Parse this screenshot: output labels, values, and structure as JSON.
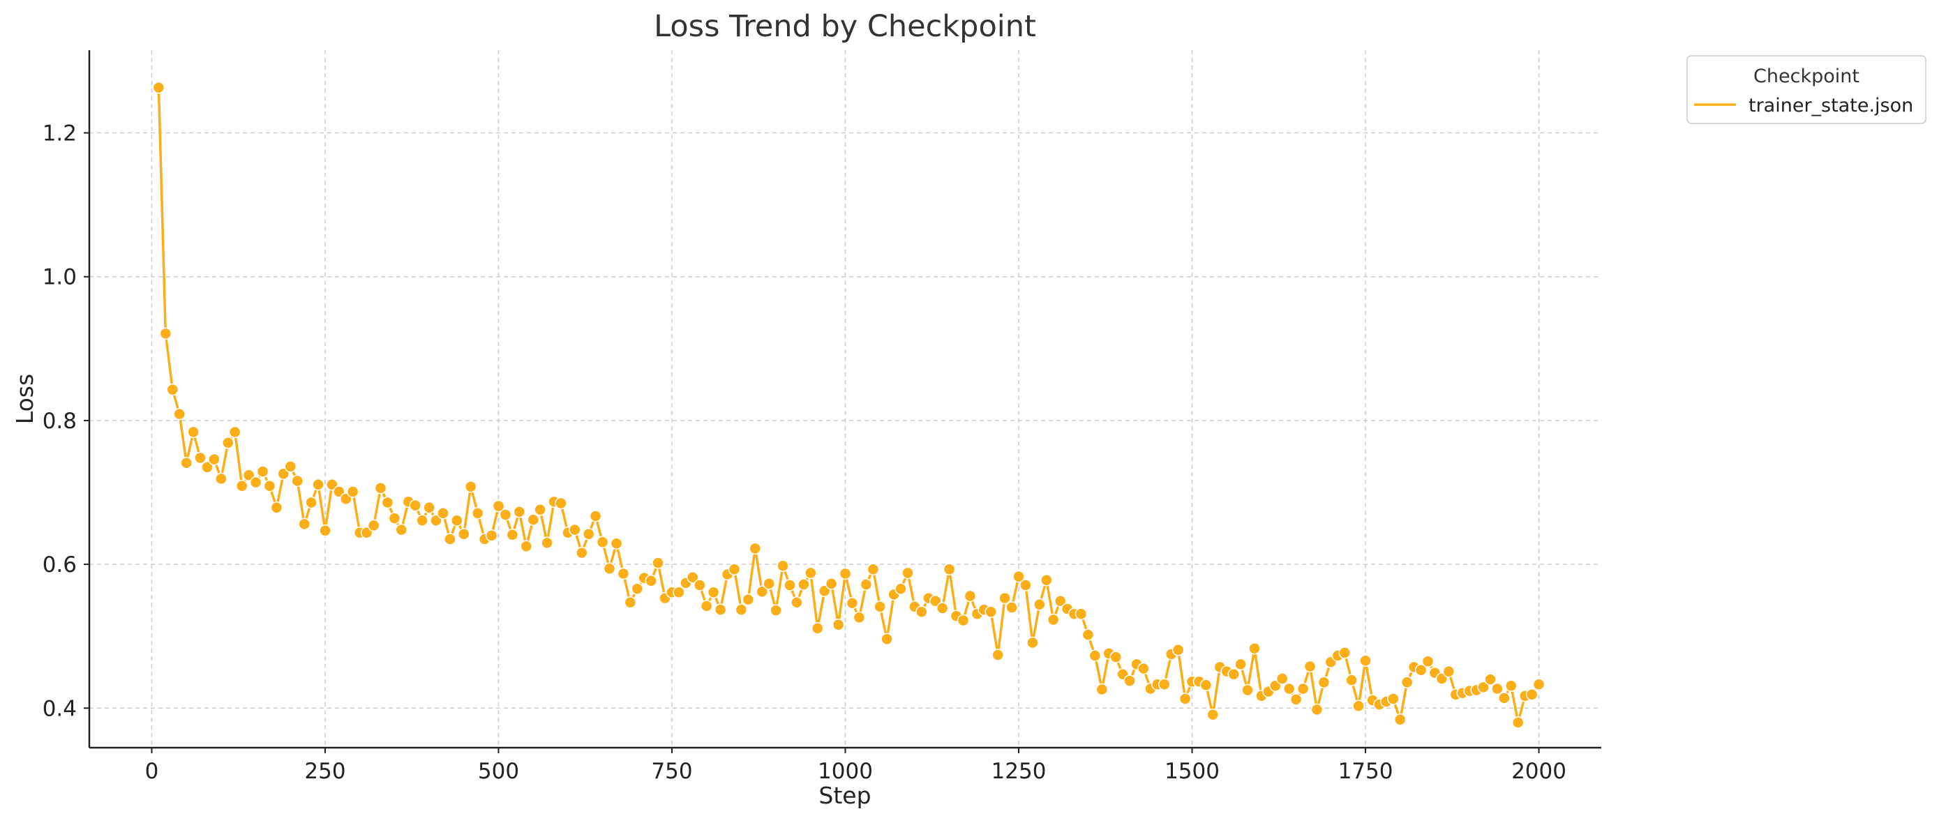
{
  "chart_data": {
    "type": "line",
    "title": "Loss Trend by Checkpoint",
    "xlabel": "Step",
    "ylabel": "Loss",
    "xlim": [
      -90,
      2090
    ],
    "ylim": [
      0.345,
      1.315
    ],
    "xticks": [
      0,
      250,
      500,
      750,
      1000,
      1250,
      1500,
      1750,
      2000
    ],
    "yticks": [
      0.4,
      0.6,
      0.8,
      1.0,
      1.2
    ],
    "xtick_labels": [
      "0",
      "250",
      "500",
      "750",
      "1000",
      "1250",
      "1500",
      "1750",
      "2000"
    ],
    "ytick_labels": [
      "0.4",
      "0.6",
      "0.8",
      "1.0",
      "1.2"
    ],
    "grid": true,
    "legend": {
      "title": "Checkpoint",
      "position": "outside-top-right"
    },
    "series": [
      {
        "name": "trainer_state.json",
        "color": "#FBAE17",
        "marker": "circle",
        "x": [
          10,
          20,
          30,
          40,
          50,
          60,
          70,
          80,
          90,
          100,
          110,
          120,
          130,
          140,
          150,
          160,
          170,
          180,
          190,
          200,
          210,
          220,
          230,
          240,
          250,
          260,
          270,
          280,
          290,
          300,
          310,
          320,
          330,
          340,
          350,
          360,
          370,
          380,
          390,
          400,
          410,
          420,
          430,
          440,
          450,
          460,
          470,
          480,
          490,
          500,
          510,
          520,
          530,
          540,
          550,
          560,
          570,
          580,
          590,
          600,
          610,
          620,
          630,
          640,
          650,
          660,
          670,
          680,
          690,
          700,
          710,
          720,
          730,
          740,
          750,
          760,
          770,
          780,
          790,
          800,
          810,
          820,
          830,
          840,
          850,
          860,
          870,
          880,
          890,
          900,
          910,
          920,
          930,
          940,
          950,
          960,
          970,
          980,
          990,
          1000,
          1010,
          1020,
          1030,
          1040,
          1050,
          1060,
          1070,
          1080,
          1090,
          1100,
          1110,
          1120,
          1130,
          1140,
          1150,
          1160,
          1170,
          1180,
          1190,
          1200,
          1210,
          1220,
          1230,
          1240,
          1250,
          1260,
          1270,
          1280,
          1290,
          1300,
          1310,
          1320,
          1330,
          1340,
          1350,
          1360,
          1370,
          1380,
          1390,
          1400,
          1410,
          1420,
          1430,
          1440,
          1450,
          1460,
          1470,
          1480,
          1490,
          1500,
          1510,
          1520,
          1530,
          1540,
          1550,
          1560,
          1570,
          1580,
          1590,
          1600,
          1610,
          1620,
          1630,
          1640,
          1650,
          1660,
          1670,
          1680,
          1690,
          1700,
          1710,
          1720,
          1730,
          1740,
          1750,
          1760,
          1770,
          1780,
          1790,
          1800,
          1810,
          1820,
          1830,
          1840,
          1850,
          1860,
          1870,
          1880,
          1890,
          1900,
          1910,
          1920,
          1930,
          1940,
          1950,
          1960,
          1970,
          1980,
          1990,
          2000
        ],
        "y": [
          1.263,
          0.921,
          0.843,
          0.809,
          0.741,
          0.784,
          0.748,
          0.735,
          0.746,
          0.719,
          0.769,
          0.784,
          0.709,
          0.724,
          0.714,
          0.729,
          0.709,
          0.679,
          0.726,
          0.736,
          0.716,
          0.656,
          0.686,
          0.711,
          0.647,
          0.711,
          0.701,
          0.691,
          0.701,
          0.644,
          0.644,
          0.654,
          0.706,
          0.686,
          0.664,
          0.648,
          0.687,
          0.682,
          0.661,
          0.679,
          0.661,
          0.671,
          0.635,
          0.661,
          0.642,
          0.708,
          0.671,
          0.635,
          0.64,
          0.681,
          0.669,
          0.641,
          0.673,
          0.625,
          0.662,
          0.676,
          0.63,
          0.687,
          0.685,
          0.644,
          0.648,
          0.616,
          0.642,
          0.667,
          0.631,
          0.594,
          0.629,
          0.587,
          0.547,
          0.566,
          0.581,
          0.577,
          0.602,
          0.553,
          0.561,
          0.561,
          0.574,
          0.582,
          0.571,
          0.542,
          0.561,
          0.537,
          0.586,
          0.593,
          0.537,
          0.551,
          0.622,
          0.562,
          0.573,
          0.536,
          0.598,
          0.571,
          0.547,
          0.572,
          0.588,
          0.511,
          0.563,
          0.573,
          0.516,
          0.587,
          0.546,
          0.526,
          0.572,
          0.593,
          0.541,
          0.496,
          0.558,
          0.566,
          0.588,
          0.541,
          0.534,
          0.553,
          0.549,
          0.539,
          0.593,
          0.528,
          0.522,
          0.556,
          0.531,
          0.537,
          0.534,
          0.474,
          0.553,
          0.54,
          0.583,
          0.571,
          0.491,
          0.544,
          0.578,
          0.523,
          0.549,
          0.538,
          0.531,
          0.531,
          0.502,
          0.473,
          0.426,
          0.476,
          0.471,
          0.447,
          0.438,
          0.461,
          0.455,
          0.427,
          0.433,
          0.433,
          0.475,
          0.481,
          0.413,
          0.437,
          0.437,
          0.432,
          0.391,
          0.457,
          0.451,
          0.447,
          0.461,
          0.425,
          0.483,
          0.417,
          0.423,
          0.431,
          0.441,
          0.427,
          0.412,
          0.427,
          0.458,
          0.398,
          0.436,
          0.464,
          0.473,
          0.477,
          0.439,
          0.403,
          0.466,
          0.411,
          0.405,
          0.409,
          0.413,
          0.384,
          0.436,
          0.457,
          0.453,
          0.465,
          0.449,
          0.441,
          0.451,
          0.419,
          0.421,
          0.424,
          0.425,
          0.429,
          0.44,
          0.427,
          0.414,
          0.431,
          0.38,
          0.417,
          0.419,
          0.433
        ]
      }
    ]
  }
}
